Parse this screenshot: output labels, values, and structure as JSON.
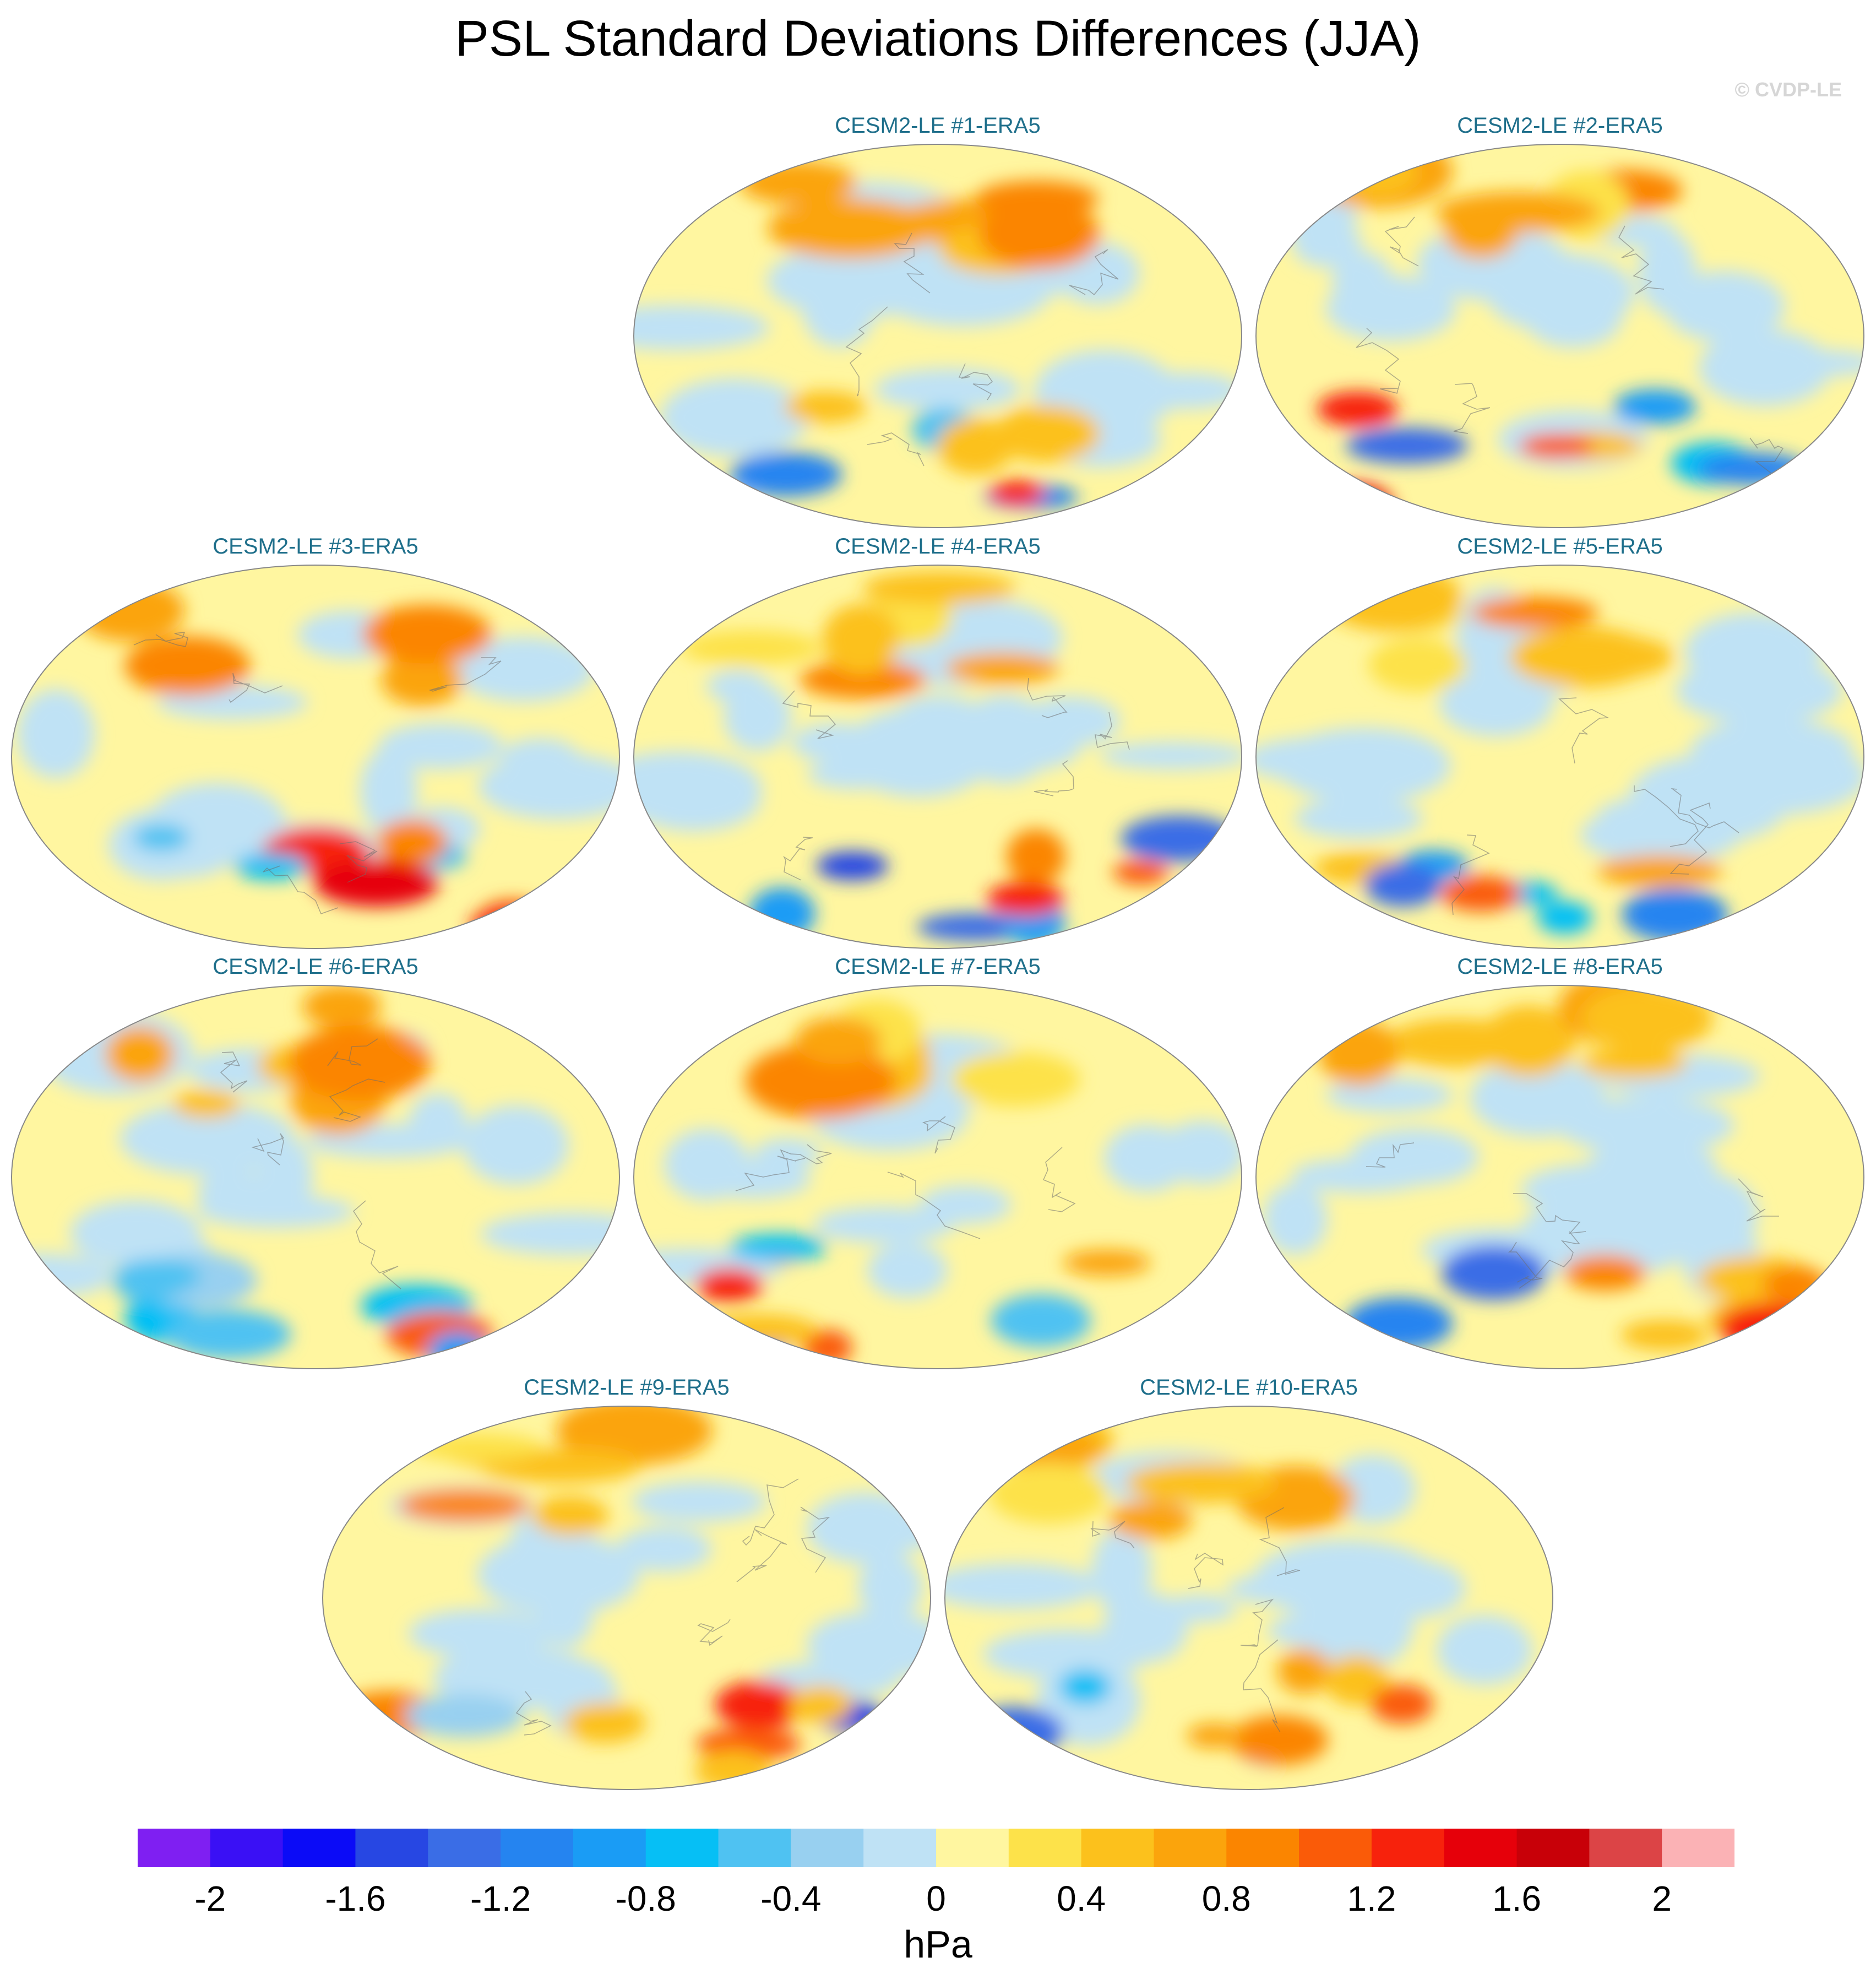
{
  "title": "PSL Standard Deviations Differences (JJA)",
  "watermark": "© CVDP-LE",
  "panels": [
    {
      "label": "CESM2-LE #1-ERA5",
      "seed": 1
    },
    {
      "label": "CESM2-LE #2-ERA5",
      "seed": 2
    },
    {
      "label": "CESM2-LE #3-ERA5",
      "seed": 3
    },
    {
      "label": "CESM2-LE #4-ERA5",
      "seed": 4
    },
    {
      "label": "CESM2-LE #5-ERA5",
      "seed": 5
    },
    {
      "label": "CESM2-LE #6-ERA5",
      "seed": 6
    },
    {
      "label": "CESM2-LE #7-ERA5",
      "seed": 7
    },
    {
      "label": "CESM2-LE #8-ERA5",
      "seed": 8
    },
    {
      "label": "CESM2-LE #9-ERA5",
      "seed": 9
    },
    {
      "label": "CESM2-LE #10-ERA5",
      "seed": 10
    }
  ],
  "colorbar": {
    "units": "hPa",
    "tick_labels": [
      "-2",
      "-1.6",
      "-1.2",
      "-0.8",
      "-0.4",
      "0",
      "0.4",
      "0.8",
      "1.2",
      "1.6",
      "2"
    ],
    "levels": [
      -2.2,
      -2,
      -1.8,
      -1.6,
      -1.4,
      -1.2,
      -1,
      -0.8,
      -0.6,
      -0.4,
      -0.2,
      0,
      0.2,
      0.4,
      0.6,
      0.8,
      1,
      1.2,
      1.4,
      1.6,
      1.8,
      2,
      2.2
    ],
    "colors": [
      "#7f1ff2",
      "#3a10f5",
      "#0b0bf7",
      "#2747e3",
      "#3a6de6",
      "#2584f0",
      "#1a9cf5",
      "#06bff5",
      "#4fc2f2",
      "#98d0f0",
      "#bfe2f5",
      "#fff6a0",
      "#fde24a",
      "#fcc11c",
      "#fba40c",
      "#fb8500",
      "#fa5b08",
      "#f7220c",
      "#e6000a",
      "#c80008",
      "#dc4446",
      "#fbb2b5"
    ]
  }
}
